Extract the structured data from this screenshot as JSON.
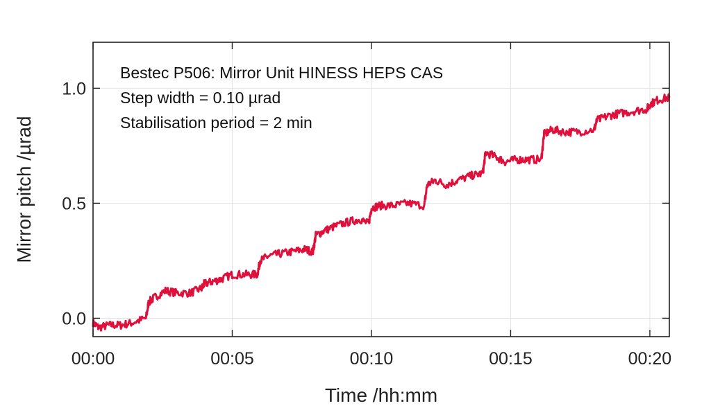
{
  "chart_data": {
    "type": "line",
    "title": "",
    "xlabel": "Time /hh:mm",
    "ylabel": "Mirror pitch /µrad",
    "annotations": [
      "Bestec P506: Mirror Unit HINESS HEPS CAS",
      "Step width = 0.10 µrad",
      "Stabilisation period = 2 min"
    ],
    "xlim": [
      0,
      20.7
    ],
    "ylim": [
      -0.08,
      1.2
    ],
    "x_ticks": [
      {
        "value": 0,
        "label": "00:00"
      },
      {
        "value": 5,
        "label": "00:05"
      },
      {
        "value": 10,
        "label": "00:10"
      },
      {
        "value": 15,
        "label": "00:15"
      },
      {
        "value": 20,
        "label": "00:20"
      }
    ],
    "y_ticks": [
      {
        "value": 0,
        "label": "0.0"
      },
      {
        "value": 0.5,
        "label": "0.5"
      },
      {
        "value": 1.0,
        "label": "1.0"
      }
    ],
    "grid": true,
    "series": [
      {
        "color": "#e0103c",
        "x": [
          0,
          0.2,
          0.6,
          1.0,
          1.4,
          1.9,
          2.0,
          2.2,
          2.6,
          3.0,
          3.5,
          3.9,
          4.0,
          4.3,
          4.6,
          5.0,
          5.5,
          5.9,
          6.0,
          6.3,
          6.7,
          7.2,
          7.6,
          7.9,
          8.0,
          8.3,
          8.7,
          9.2,
          9.6,
          9.9,
          10.0,
          10.3,
          10.8,
          11.3,
          11.9,
          12.0,
          12.3,
          12.7,
          13.1,
          13.6,
          14.0,
          14.1,
          14.5,
          14.8,
          15.2,
          15.6,
          16.1,
          16.2,
          16.5,
          16.9,
          17.4,
          18.0,
          18.1,
          18.5,
          18.9,
          19.4,
          19.9,
          20.0,
          20.3,
          20.7
        ],
        "y": [
          -0.02,
          -0.04,
          -0.03,
          -0.03,
          -0.02,
          0.0,
          0.07,
          0.09,
          0.12,
          0.11,
          0.11,
          0.13,
          0.15,
          0.16,
          0.17,
          0.19,
          0.19,
          0.19,
          0.25,
          0.27,
          0.28,
          0.29,
          0.3,
          0.29,
          0.36,
          0.38,
          0.4,
          0.42,
          0.43,
          0.41,
          0.48,
          0.49,
          0.49,
          0.5,
          0.49,
          0.58,
          0.6,
          0.58,
          0.6,
          0.62,
          0.63,
          0.72,
          0.7,
          0.68,
          0.69,
          0.69,
          0.69,
          0.8,
          0.82,
          0.81,
          0.81,
          0.82,
          0.86,
          0.88,
          0.89,
          0.9,
          0.91,
          0.93,
          0.95,
          0.96
        ]
      }
    ]
  }
}
